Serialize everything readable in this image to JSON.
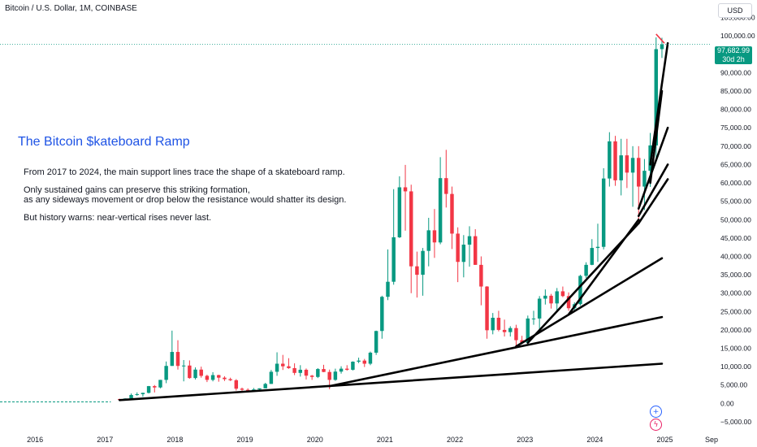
{
  "symbol_title": "Bitcoin / U.S. Dollar, 1M, COINBASE",
  "currency_button": "USD",
  "annotation": {
    "title": "The Bitcoin $kateboard Ramp",
    "lines": [
      "From 2017 to 2024, the main support lines trace the shape of a skateboard ramp.",
      "Only sustained gains can preserve this striking formation,",
      "as any sideways movement or drop below the resistance would shatter its design.",
      "But history warns: near-vertical rises never last."
    ]
  },
  "last_price": {
    "price": "97,682.99",
    "countdown": "30d 2h",
    "value": 97683
  },
  "icons": {
    "plus": "plus-circle-icon",
    "flash": "lightning-icon"
  },
  "colors": {
    "up": "#089981",
    "down": "#f23645",
    "trendline": "#000000",
    "title": "#1e53e5",
    "flat_series": "#089981"
  },
  "chart_data": {
    "type": "candlestick",
    "title": "Bitcoin / U.S. Dollar, 1M, COINBASE",
    "x_start": "2015-07",
    "x_end": "2025-09",
    "ylim": [
      -7000,
      108000
    ],
    "y_ticks": [
      "105,000.00",
      "100,000.00",
      "95,000.00",
      "90,000.00",
      "85,000.00",
      "80,000.00",
      "75,000.00",
      "70,000.00",
      "65,000.00",
      "60,000.00",
      "55,000.00",
      "50,000.00",
      "45,000.00",
      "40,000.00",
      "35,000.00",
      "30,000.00",
      "25,000.00",
      "20,000.00",
      "15,000.00",
      "10,000.00",
      "5,000.00",
      "0.00",
      "−5,000.00"
    ],
    "y_tick_values": [
      105000,
      100000,
      95000,
      90000,
      85000,
      80000,
      75000,
      70000,
      65000,
      60000,
      55000,
      50000,
      45000,
      40000,
      35000,
      30000,
      25000,
      20000,
      15000,
      10000,
      5000,
      0,
      -5000
    ],
    "x_ticks": [
      "2016",
      "2017",
      "2018",
      "2019",
      "2020",
      "2021",
      "2022",
      "2023",
      "2024",
      "2025",
      "Sep"
    ],
    "x_tick_dates": [
      "2016-01",
      "2017-01",
      "2018-01",
      "2019-01",
      "2020-01",
      "2021-01",
      "2022-01",
      "2023-01",
      "2024-01",
      "2025-01",
      "2025-09"
    ],
    "flat_segment": {
      "from": "2015-07",
      "to": "2017-02",
      "value": 400
    },
    "candles": [
      {
        "t": "2017-03",
        "o": 1190,
        "h": 1280,
        "l": 900,
        "c": 1080
      },
      {
        "t": "2017-04",
        "o": 1080,
        "h": 1350,
        "l": 1050,
        "c": 1350
      },
      {
        "t": "2017-05",
        "o": 1350,
        "h": 2700,
        "l": 1350,
        "c": 2300
      },
      {
        "t": "2017-06",
        "o": 2300,
        "h": 3000,
        "l": 2100,
        "c": 2500
      },
      {
        "t": "2017-07",
        "o": 2500,
        "h": 2900,
        "l": 1800,
        "c": 2870
      },
      {
        "t": "2017-08",
        "o": 2870,
        "h": 4750,
        "l": 2700,
        "c": 4700
      },
      {
        "t": "2017-09",
        "o": 4700,
        "h": 5000,
        "l": 2980,
        "c": 4340
      },
      {
        "t": "2017-10",
        "o": 4340,
        "h": 6400,
        "l": 4100,
        "c": 6400
      },
      {
        "t": "2017-11",
        "o": 6400,
        "h": 11400,
        "l": 5500,
        "c": 10200
      },
      {
        "t": "2017-12",
        "o": 10200,
        "h": 19800,
        "l": 10200,
        "c": 14000
      },
      {
        "t": "2018-01",
        "o": 14000,
        "h": 17200,
        "l": 9200,
        "c": 10200
      },
      {
        "t": "2018-02",
        "o": 10200,
        "h": 11800,
        "l": 6000,
        "c": 10300
      },
      {
        "t": "2018-03",
        "o": 10300,
        "h": 11700,
        "l": 6700,
        "c": 6900
      },
      {
        "t": "2018-04",
        "o": 6900,
        "h": 9800,
        "l": 6500,
        "c": 9200
      },
      {
        "t": "2018-05",
        "o": 9200,
        "h": 10000,
        "l": 7000,
        "c": 7500
      },
      {
        "t": "2018-06",
        "o": 7500,
        "h": 7800,
        "l": 5800,
        "c": 6400
      },
      {
        "t": "2018-07",
        "o": 6400,
        "h": 8500,
        "l": 6000,
        "c": 7700
      },
      {
        "t": "2018-08",
        "o": 7700,
        "h": 7800,
        "l": 5900,
        "c": 7000
      },
      {
        "t": "2018-09",
        "o": 7000,
        "h": 7400,
        "l": 6100,
        "c": 6600
      },
      {
        "t": "2018-10",
        "o": 6600,
        "h": 7000,
        "l": 6100,
        "c": 6300
      },
      {
        "t": "2018-11",
        "o": 6300,
        "h": 6600,
        "l": 3500,
        "c": 4000
      },
      {
        "t": "2018-12",
        "o": 4000,
        "h": 4300,
        "l": 3100,
        "c": 3700
      },
      {
        "t": "2019-01",
        "o": 3700,
        "h": 4100,
        "l": 3300,
        "c": 3400
      },
      {
        "t": "2019-02",
        "o": 3400,
        "h": 4200,
        "l": 3300,
        "c": 3800
      },
      {
        "t": "2019-03",
        "o": 3800,
        "h": 4100,
        "l": 3700,
        "c": 4100
      },
      {
        "t": "2019-04",
        "o": 4100,
        "h": 5600,
        "l": 4100,
        "c": 5300
      },
      {
        "t": "2019-05",
        "o": 5300,
        "h": 9100,
        "l": 5300,
        "c": 8600
      },
      {
        "t": "2019-06",
        "o": 8600,
        "h": 13900,
        "l": 7500,
        "c": 10800
      },
      {
        "t": "2019-07",
        "o": 10800,
        "h": 13200,
        "l": 9100,
        "c": 10100
      },
      {
        "t": "2019-08",
        "o": 10100,
        "h": 12300,
        "l": 9400,
        "c": 9600
      },
      {
        "t": "2019-09",
        "o": 9600,
        "h": 10900,
        "l": 7700,
        "c": 8300
      },
      {
        "t": "2019-10",
        "o": 8300,
        "h": 10400,
        "l": 7300,
        "c": 9150
      },
      {
        "t": "2019-11",
        "o": 9150,
        "h": 9500,
        "l": 6500,
        "c": 7550
      },
      {
        "t": "2019-12",
        "o": 7550,
        "h": 7750,
        "l": 6400,
        "c": 7200
      },
      {
        "t": "2020-01",
        "o": 7200,
        "h": 9600,
        "l": 6900,
        "c": 9350
      },
      {
        "t": "2020-02",
        "o": 9350,
        "h": 10500,
        "l": 8500,
        "c": 8550
      },
      {
        "t": "2020-03",
        "o": 8550,
        "h": 9200,
        "l": 3850,
        "c": 6400
      },
      {
        "t": "2020-04",
        "o": 6400,
        "h": 9450,
        "l": 6150,
        "c": 8650
      },
      {
        "t": "2020-05",
        "o": 8650,
        "h": 10100,
        "l": 8100,
        "c": 9450
      },
      {
        "t": "2020-06",
        "o": 9450,
        "h": 10400,
        "l": 8900,
        "c": 9150
      },
      {
        "t": "2020-07",
        "o": 9150,
        "h": 11450,
        "l": 8950,
        "c": 11350
      },
      {
        "t": "2020-08",
        "o": 11350,
        "h": 12450,
        "l": 10950,
        "c": 11650
      },
      {
        "t": "2020-09",
        "o": 11650,
        "h": 12100,
        "l": 9900,
        "c": 10800
      },
      {
        "t": "2020-10",
        "o": 10800,
        "h": 14100,
        "l": 10400,
        "c": 13800
      },
      {
        "t": "2020-11",
        "o": 13800,
        "h": 19800,
        "l": 13200,
        "c": 19700
      },
      {
        "t": "2020-12",
        "o": 19700,
        "h": 29300,
        "l": 17600,
        "c": 29000
      },
      {
        "t": "2021-01",
        "o": 29000,
        "h": 41900,
        "l": 28100,
        "c": 33100
      },
      {
        "t": "2021-02",
        "o": 33100,
        "h": 58300,
        "l": 32300,
        "c": 45200
      },
      {
        "t": "2021-03",
        "o": 45200,
        "h": 61800,
        "l": 45000,
        "c": 58800
      },
      {
        "t": "2021-04",
        "o": 58800,
        "h": 64900,
        "l": 47000,
        "c": 57700
      },
      {
        "t": "2021-05",
        "o": 57700,
        "h": 59500,
        "l": 30000,
        "c": 37300
      },
      {
        "t": "2021-06",
        "o": 37300,
        "h": 41300,
        "l": 28800,
        "c": 35000
      },
      {
        "t": "2021-07",
        "o": 35000,
        "h": 42300,
        "l": 29300,
        "c": 41500
      },
      {
        "t": "2021-08",
        "o": 41500,
        "h": 50500,
        "l": 37300,
        "c": 47100
      },
      {
        "t": "2021-09",
        "o": 47100,
        "h": 52900,
        "l": 39600,
        "c": 43800
      },
      {
        "t": "2021-10",
        "o": 43800,
        "h": 67000,
        "l": 43300,
        "c": 61300
      },
      {
        "t": "2021-11",
        "o": 61300,
        "h": 69000,
        "l": 53300,
        "c": 57000
      },
      {
        "t": "2021-12",
        "o": 57000,
        "h": 59000,
        "l": 42000,
        "c": 46200
      },
      {
        "t": "2022-01",
        "o": 46200,
        "h": 47900,
        "l": 33000,
        "c": 38500
      },
      {
        "t": "2022-02",
        "o": 38500,
        "h": 45800,
        "l": 34300,
        "c": 43200
      },
      {
        "t": "2022-03",
        "o": 43200,
        "h": 48200,
        "l": 37200,
        "c": 45500
      },
      {
        "t": "2022-04",
        "o": 45500,
        "h": 47400,
        "l": 37700,
        "c": 37700
      },
      {
        "t": "2022-05",
        "o": 37700,
        "h": 40000,
        "l": 26700,
        "c": 31800
      },
      {
        "t": "2022-06",
        "o": 31800,
        "h": 31900,
        "l": 17600,
        "c": 19900
      },
      {
        "t": "2022-07",
        "o": 19900,
        "h": 24600,
        "l": 18800,
        "c": 23300
      },
      {
        "t": "2022-08",
        "o": 23300,
        "h": 25200,
        "l": 19600,
        "c": 20000
      },
      {
        "t": "2022-09",
        "o": 20000,
        "h": 22800,
        "l": 18200,
        "c": 19400
      },
      {
        "t": "2022-10",
        "o": 19400,
        "h": 21000,
        "l": 18200,
        "c": 20500
      },
      {
        "t": "2022-11",
        "o": 20500,
        "h": 21400,
        "l": 15500,
        "c": 17200
      },
      {
        "t": "2022-12",
        "o": 17200,
        "h": 18400,
        "l": 16300,
        "c": 16500
      },
      {
        "t": "2023-01",
        "o": 16500,
        "h": 23900,
        "l": 16500,
        "c": 23100
      },
      {
        "t": "2023-02",
        "o": 23100,
        "h": 25200,
        "l": 21400,
        "c": 23100
      },
      {
        "t": "2023-03",
        "o": 23100,
        "h": 29200,
        "l": 19600,
        "c": 28500
      },
      {
        "t": "2023-04",
        "o": 28500,
        "h": 31000,
        "l": 26900,
        "c": 29300
      },
      {
        "t": "2023-05",
        "o": 29300,
        "h": 29800,
        "l": 25800,
        "c": 27200
      },
      {
        "t": "2023-06",
        "o": 27200,
        "h": 31400,
        "l": 24800,
        "c": 30500
      },
      {
        "t": "2023-07",
        "o": 30500,
        "h": 31800,
        "l": 28900,
        "c": 29200
      },
      {
        "t": "2023-08",
        "o": 29200,
        "h": 30200,
        "l": 25200,
        "c": 25900
      },
      {
        "t": "2023-09",
        "o": 25900,
        "h": 27500,
        "l": 24900,
        "c": 27000
      },
      {
        "t": "2023-10",
        "o": 27000,
        "h": 35000,
        "l": 26600,
        "c": 34700
      },
      {
        "t": "2023-11",
        "o": 34700,
        "h": 38400,
        "l": 34100,
        "c": 37700
      },
      {
        "t": "2023-12",
        "o": 37700,
        "h": 44700,
        "l": 37600,
        "c": 42300
      },
      {
        "t": "2024-01",
        "o": 42300,
        "h": 48900,
        "l": 38500,
        "c": 42600
      },
      {
        "t": "2024-02",
        "o": 42600,
        "h": 64000,
        "l": 41900,
        "c": 61200
      },
      {
        "t": "2024-03",
        "o": 61200,
        "h": 73800,
        "l": 59000,
        "c": 71300
      },
      {
        "t": "2024-04",
        "o": 71300,
        "h": 72800,
        "l": 59200,
        "c": 60700
      },
      {
        "t": "2024-05",
        "o": 60700,
        "h": 72000,
        "l": 56600,
        "c": 67500
      },
      {
        "t": "2024-06",
        "o": 67500,
        "h": 72000,
        "l": 58600,
        "c": 62800
      },
      {
        "t": "2024-07",
        "o": 62800,
        "h": 70000,
        "l": 53500,
        "c": 66800
      },
      {
        "t": "2024-08",
        "o": 66800,
        "h": 70000,
        "l": 49000,
        "c": 59000
      },
      {
        "t": "2024-09",
        "o": 59000,
        "h": 66500,
        "l": 52600,
        "c": 63300
      },
      {
        "t": "2024-10",
        "o": 63300,
        "h": 73600,
        "l": 58900,
        "c": 70200
      },
      {
        "t": "2024-11",
        "o": 70200,
        "h": 99600,
        "l": 66800,
        "c": 96400
      },
      {
        "t": "2024-12",
        "o": 96400,
        "h": 99500,
        "l": 94000,
        "c": 97683
      }
    ],
    "trendlines": [
      {
        "from": {
          "t": "2017-03",
          "v": 900
        },
        "to": {
          "t": "2024-12",
          "v": 10800
        }
      },
      {
        "from": {
          "t": "2020-03",
          "v": 4700
        },
        "to": {
          "t": "2024-12",
          "v": 23500
        }
      },
      {
        "from": {
          "t": "2022-11",
          "v": 15500
        },
        "to": {
          "t": "2024-12",
          "v": 39500
        }
      },
      {
        "from": {
          "t": "2023-01",
          "v": 16500
        },
        "to": {
          "t": "2024-08",
          "v": 49000
        }
      },
      {
        "from": {
          "t": "2023-08",
          "v": 24200
        },
        "to": {
          "t": "2024-08",
          "v": 50000
        }
      },
      {
        "from": {
          "t": "2024-08",
          "v": 49000
        },
        "to": {
          "t": "2025-01",
          "v": 61000
        }
      },
      {
        "from": {
          "t": "2024-08",
          "v": 51000
        },
        "to": {
          "t": "2025-01",
          "v": 65000
        }
      },
      {
        "from": {
          "t": "2024-08",
          "v": 53000
        },
        "to": {
          "t": "2025-01",
          "v": 75000
        }
      },
      {
        "from": {
          "t": "2024-10",
          "v": 60000
        },
        "to": {
          "t": "2024-12",
          "v": 85000
        }
      },
      {
        "from": {
          "t": "2024-10",
          "v": 65000
        },
        "to": {
          "t": "2025-01",
          "v": 98000
        }
      }
    ],
    "red_marker": {
      "from": {
        "t": "2024-11",
        "v": 100500
      },
      "to": {
        "t": "2024-12",
        "v": 98000
      }
    }
  }
}
